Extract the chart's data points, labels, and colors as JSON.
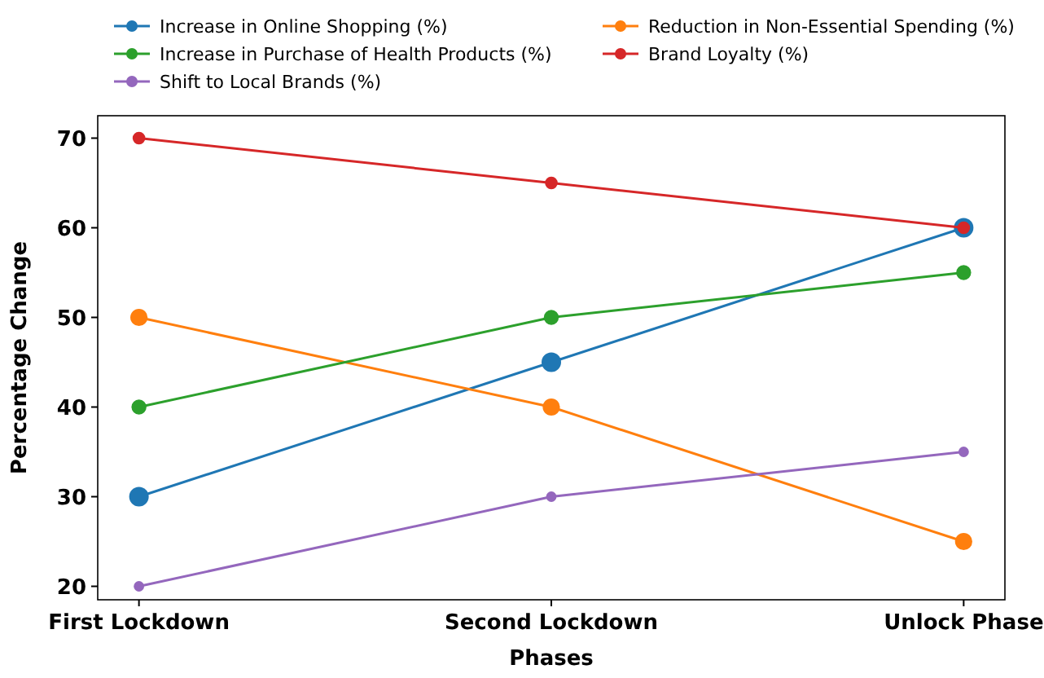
{
  "chart_data": {
    "type": "line",
    "xlabel": "Phases",
    "ylabel": "Percentage Change",
    "categories": [
      "First Lockdown",
      "Second Lockdown",
      "Unlock Phase"
    ],
    "series": [
      {
        "name": "Increase in Online Shopping (%)",
        "color": "#1f77b4",
        "values": [
          30,
          45,
          60
        ]
      },
      {
        "name": "Reduction in Non-Essential Spending (%)",
        "color": "#ff7f0e",
        "values": [
          50,
          40,
          25
        ]
      },
      {
        "name": "Increase in Purchase of Health Products (%)",
        "color": "#2ca02c",
        "values": [
          40,
          50,
          55
        ]
      },
      {
        "name": "Brand Loyalty (%)",
        "color": "#d62728",
        "values": [
          70,
          65,
          60
        ]
      },
      {
        "name": "Shift to Local Brands (%)",
        "color": "#9467bd",
        "values": [
          20,
          30,
          35
        ]
      }
    ],
    "ylim": [
      18.5,
      72.5
    ],
    "yticks": [
      20,
      30,
      40,
      50,
      60,
      70
    ],
    "marker": "circle",
    "line_style": "solid",
    "grid": false,
    "legend": "top"
  }
}
